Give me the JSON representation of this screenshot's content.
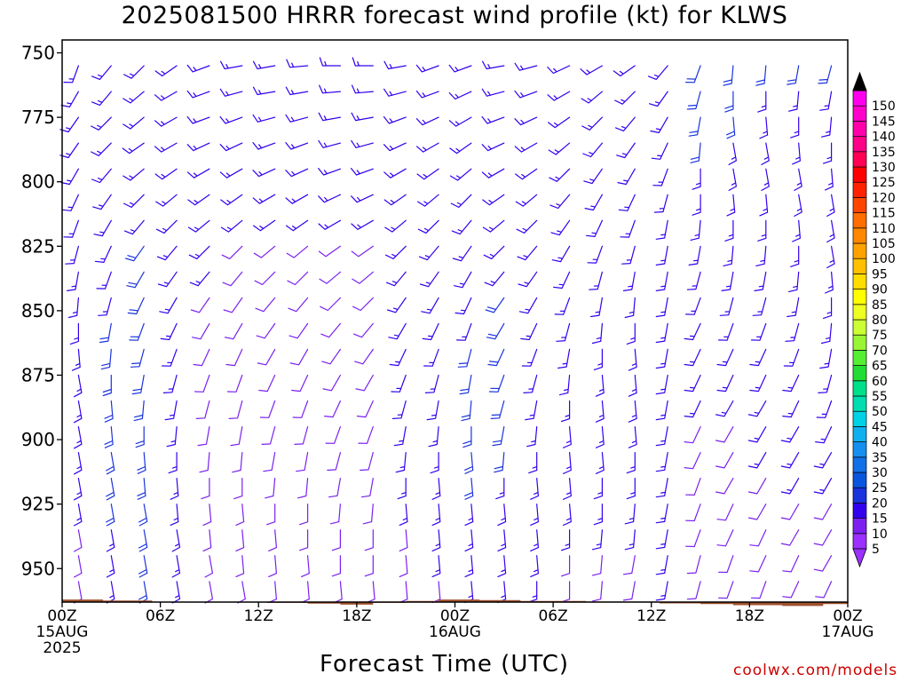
{
  "title": "2025081500 HRRR forecast wind profile (kt) for KLWS",
  "footer": "coolwx.com/models",
  "chart_data": {
    "type": "wind-barb-profile",
    "title": "2025081500 HRRR forecast wind profile (kt) for KLWS",
    "xlabel": "Forecast Time (UTC)",
    "ylabel": "",
    "x_ticks": [
      {
        "hour": 0,
        "lines": [
          "00Z",
          "15AUG",
          "2025"
        ]
      },
      {
        "hour": 6,
        "lines": [
          "06Z"
        ]
      },
      {
        "hour": 12,
        "lines": [
          "12Z"
        ]
      },
      {
        "hour": 18,
        "lines": [
          "18Z"
        ]
      },
      {
        "hour": 24,
        "lines": [
          "00Z",
          "16AUG"
        ]
      },
      {
        "hour": 30,
        "lines": [
          "06Z"
        ]
      },
      {
        "hour": 36,
        "lines": [
          "12Z"
        ]
      },
      {
        "hour": 42,
        "lines": [
          "18Z"
        ]
      },
      {
        "hour": 48,
        "lines": [
          "00Z",
          "17AUG"
        ]
      }
    ],
    "xlim": [
      0,
      48
    ],
    "y_ticks": [
      750,
      775,
      800,
      825,
      850,
      875,
      900,
      925,
      950
    ],
    "ylim_hpa": [
      745,
      963
    ],
    "forecast_hours": [
      1,
      3,
      5,
      7,
      9,
      11,
      13,
      15,
      17,
      19,
      21,
      23,
      25,
      27,
      29,
      31,
      33,
      35,
      37,
      39,
      41,
      43,
      45,
      47
    ],
    "pressure_levels": [
      755,
      765,
      775,
      785,
      795,
      805,
      815,
      825,
      835,
      845,
      855,
      865,
      875,
      885,
      895,
      905,
      915,
      925,
      935,
      945,
      955
    ],
    "surface_pressure": [
      {
        "hour": 0,
        "hpa": 962
      },
      {
        "hour": 2.5,
        "hpa": 962.4
      },
      {
        "hour": 5.5,
        "hpa": 963
      },
      {
        "hour": 10,
        "hpa": 963
      },
      {
        "hour": 12.5,
        "hpa": 963.3
      },
      {
        "hour": 15,
        "hpa": 963.6
      },
      {
        "hour": 17,
        "hpa": 964
      },
      {
        "hour": 19,
        "hpa": 963.3
      },
      {
        "hour": 21,
        "hpa": 962.6
      },
      {
        "hour": 23,
        "hpa": 962
      },
      {
        "hour": 25.5,
        "hpa": 962.2
      },
      {
        "hour": 28,
        "hpa": 962.6
      },
      {
        "hour": 32,
        "hpa": 962.8
      },
      {
        "hour": 36.5,
        "hpa": 963.5
      },
      {
        "hour": 39,
        "hpa": 963.8
      },
      {
        "hour": 41,
        "hpa": 964.2
      },
      {
        "hour": 44,
        "hpa": 964.5
      },
      {
        "hour": 46.5,
        "hpa": 963.8
      },
      {
        "hour": 48,
        "hpa": 963.8
      }
    ],
    "wind_rows": {
      "dir": [
        [
          200,
          220,
          225,
          235,
          250,
          260,
          260,
          265,
          270,
          270,
          260,
          250,
          250,
          260,
          255,
          245,
          240,
          235,
          220,
          200,
          185,
          185,
          190,
          195
        ],
        [
          210,
          220,
          230,
          240,
          250,
          255,
          260,
          260,
          265,
          265,
          255,
          250,
          245,
          255,
          250,
          240,
          230,
          225,
          215,
          195,
          180,
          180,
          185,
          190
        ],
        [
          215,
          225,
          230,
          240,
          250,
          250,
          255,
          255,
          260,
          260,
          250,
          245,
          240,
          250,
          245,
          235,
          225,
          220,
          210,
          190,
          175,
          175,
          180,
          185
        ],
        [
          215,
          225,
          235,
          240,
          245,
          245,
          250,
          250,
          255,
          255,
          245,
          240,
          235,
          245,
          240,
          230,
          220,
          215,
          205,
          185,
          170,
          170,
          175,
          180
        ],
        [
          210,
          220,
          230,
          235,
          240,
          240,
          245,
          245,
          250,
          250,
          240,
          235,
          230,
          240,
          235,
          225,
          215,
          210,
          200,
          180,
          170,
          170,
          170,
          175
        ],
        [
          205,
          215,
          225,
          230,
          235,
          235,
          240,
          240,
          245,
          245,
          235,
          230,
          225,
          235,
          230,
          220,
          210,
          205,
          195,
          180,
          175,
          175,
          170,
          170
        ],
        [
          200,
          210,
          220,
          225,
          230,
          230,
          235,
          235,
          240,
          240,
          230,
          225,
          220,
          230,
          225,
          215,
          205,
          200,
          190,
          185,
          180,
          180,
          175,
          170
        ],
        [
          195,
          205,
          215,
          220,
          225,
          225,
          230,
          230,
          235,
          235,
          225,
          220,
          215,
          225,
          220,
          210,
          200,
          195,
          190,
          190,
          185,
          185,
          180,
          170
        ],
        [
          190,
          200,
          210,
          215,
          220,
          220,
          225,
          225,
          230,
          230,
          220,
          215,
          210,
          220,
          215,
          205,
          195,
          190,
          190,
          195,
          190,
          190,
          185,
          175
        ],
        [
          185,
          195,
          205,
          210,
          215,
          215,
          220,
          220,
          225,
          225,
          215,
          210,
          205,
          215,
          210,
          200,
          190,
          185,
          190,
          200,
          195,
          195,
          190,
          180
        ],
        [
          180,
          190,
          200,
          205,
          210,
          210,
          215,
          215,
          220,
          220,
          210,
          205,
          200,
          210,
          205,
          195,
          185,
          180,
          190,
          205,
          200,
          200,
          195,
          185
        ],
        [
          175,
          185,
          195,
          200,
          205,
          205,
          210,
          210,
          215,
          215,
          205,
          200,
          195,
          205,
          200,
          190,
          180,
          175,
          190,
          205,
          205,
          205,
          200,
          190
        ],
        [
          170,
          180,
          190,
          195,
          200,
          200,
          205,
          205,
          210,
          210,
          200,
          195,
          190,
          200,
          195,
          185,
          175,
          175,
          190,
          205,
          205,
          205,
          205,
          195
        ],
        [
          170,
          175,
          185,
          190,
          195,
          195,
          200,
          200,
          205,
          205,
          195,
          190,
          185,
          195,
          190,
          180,
          175,
          175,
          190,
          205,
          210,
          210,
          205,
          200
        ],
        [
          170,
          175,
          180,
          185,
          190,
          190,
          195,
          195,
          200,
          200,
          190,
          185,
          180,
          190,
          185,
          175,
          175,
          175,
          190,
          205,
          210,
          210,
          210,
          205
        ],
        [
          170,
          170,
          175,
          180,
          185,
          185,
          190,
          190,
          195,
          195,
          185,
          180,
          175,
          185,
          180,
          175,
          175,
          180,
          190,
          205,
          210,
          210,
          210,
          210
        ],
        [
          170,
          170,
          175,
          175,
          180,
          180,
          185,
          185,
          190,
          190,
          180,
          175,
          175,
          180,
          175,
          175,
          180,
          180,
          190,
          200,
          210,
          210,
          210,
          210
        ],
        [
          170,
          170,
          170,
          175,
          175,
          175,
          180,
          180,
          185,
          185,
          175,
          175,
          175,
          175,
          175,
          175,
          180,
          185,
          190,
          200,
          205,
          210,
          210,
          210
        ],
        [
          170,
          170,
          170,
          170,
          175,
          175,
          175,
          180,
          180,
          180,
          175,
          175,
          175,
          175,
          175,
          180,
          185,
          185,
          190,
          200,
          205,
          205,
          210,
          210
        ],
        [
          170,
          170,
          170,
          170,
          170,
          175,
          175,
          175,
          180,
          180,
          175,
          175,
          175,
          175,
          175,
          180,
          185,
          190,
          190,
          195,
          200,
          205,
          205,
          210
        ],
        [
          170,
          170,
          170,
          170,
          170,
          170,
          175,
          175,
          175,
          175,
          175,
          175,
          175,
          175,
          180,
          180,
          185,
          190,
          190,
          195,
          200,
          200,
          205,
          205
        ]
      ],
      "speed": [
        [
          15,
          15,
          15,
          15,
          15,
          15,
          15,
          15,
          15,
          15,
          15,
          15,
          15,
          15,
          15,
          15,
          15,
          15,
          15,
          20,
          20,
          20,
          20,
          20
        ],
        [
          15,
          15,
          15,
          15,
          15,
          15,
          15,
          15,
          15,
          15,
          15,
          15,
          15,
          15,
          15,
          15,
          15,
          15,
          15,
          20,
          20,
          15,
          15,
          15
        ],
        [
          15,
          15,
          15,
          15,
          15,
          15,
          15,
          15,
          15,
          15,
          15,
          15,
          15,
          15,
          15,
          15,
          15,
          15,
          15,
          20,
          20,
          15,
          15,
          15
        ],
        [
          15,
          15,
          15,
          15,
          15,
          15,
          15,
          15,
          15,
          15,
          15,
          15,
          15,
          15,
          15,
          15,
          15,
          15,
          15,
          20,
          15,
          15,
          15,
          15
        ],
        [
          15,
          15,
          15,
          15,
          15,
          15,
          15,
          15,
          15,
          15,
          15,
          15,
          15,
          15,
          15,
          15,
          15,
          15,
          15,
          15,
          15,
          15,
          15,
          15
        ],
        [
          15,
          15,
          15,
          15,
          15,
          15,
          15,
          15,
          15,
          15,
          15,
          15,
          15,
          15,
          15,
          15,
          15,
          15,
          15,
          15,
          15,
          15,
          15,
          15
        ],
        [
          15,
          15,
          15,
          15,
          15,
          15,
          15,
          15,
          15,
          15,
          15,
          15,
          15,
          15,
          15,
          15,
          15,
          15,
          15,
          15,
          15,
          15,
          15,
          15
        ],
        [
          15,
          15,
          20,
          15,
          15,
          10,
          10,
          10,
          10,
          10,
          15,
          15,
          15,
          15,
          15,
          15,
          15,
          15,
          15,
          15,
          15,
          15,
          15,
          15
        ],
        [
          15,
          15,
          20,
          15,
          15,
          10,
          10,
          10,
          10,
          10,
          15,
          15,
          15,
          15,
          15,
          15,
          15,
          15,
          15,
          15,
          15,
          15,
          15,
          15
        ],
        [
          15,
          15,
          20,
          15,
          10,
          10,
          10,
          10,
          10,
          10,
          15,
          15,
          15,
          20,
          15,
          15,
          15,
          15,
          15,
          15,
          15,
          15,
          15,
          15
        ],
        [
          15,
          20,
          20,
          15,
          10,
          10,
          10,
          10,
          10,
          10,
          15,
          15,
          15,
          20,
          15,
          15,
          15,
          15,
          15,
          15,
          15,
          15,
          15,
          15
        ],
        [
          15,
          20,
          20,
          15,
          10,
          10,
          10,
          10,
          10,
          10,
          15,
          15,
          20,
          20,
          15,
          15,
          15,
          15,
          15,
          15,
          15,
          15,
          15,
          15
        ],
        [
          15,
          20,
          20,
          15,
          10,
          10,
          10,
          10,
          10,
          10,
          15,
          15,
          20,
          20,
          15,
          15,
          15,
          15,
          15,
          15,
          15,
          15,
          15,
          15
        ],
        [
          15,
          20,
          20,
          15,
          10,
          10,
          10,
          10,
          10,
          10,
          15,
          15,
          20,
          20,
          15,
          15,
          15,
          15,
          15,
          15,
          15,
          15,
          15,
          15
        ],
        [
          15,
          20,
          20,
          15,
          10,
          10,
          10,
          10,
          10,
          10,
          15,
          15,
          20,
          20,
          15,
          15,
          15,
          15,
          15,
          10,
          10,
          15,
          15,
          15
        ],
        [
          15,
          20,
          20,
          15,
          10,
          10,
          10,
          10,
          10,
          10,
          15,
          15,
          20,
          20,
          15,
          15,
          15,
          15,
          15,
          10,
          10,
          15,
          15,
          15
        ],
        [
          15,
          20,
          20,
          15,
          10,
          10,
          10,
          10,
          10,
          10,
          15,
          15,
          20,
          15,
          15,
          15,
          15,
          15,
          15,
          10,
          10,
          10,
          15,
          15
        ],
        [
          15,
          20,
          20,
          15,
          10,
          10,
          10,
          10,
          10,
          10,
          15,
          15,
          15,
          15,
          15,
          15,
          15,
          15,
          15,
          10,
          10,
          10,
          10,
          10
        ],
        [
          10,
          15,
          20,
          15,
          10,
          10,
          10,
          10,
          10,
          10,
          10,
          15,
          15,
          15,
          15,
          15,
          15,
          15,
          15,
          10,
          10,
          10,
          10,
          10
        ],
        [
          10,
          15,
          20,
          15,
          10,
          10,
          10,
          10,
          10,
          10,
          10,
          15,
          15,
          15,
          15,
          10,
          10,
          10,
          15,
          10,
          10,
          10,
          10,
          10
        ],
        [
          10,
          15,
          20,
          15,
          10,
          10,
          10,
          10,
          10,
          10,
          10,
          10,
          15,
          15,
          15,
          10,
          10,
          10,
          15,
          10,
          10,
          10,
          10,
          10
        ]
      ]
    },
    "colorbar": {
      "levels": [
        5,
        10,
        15,
        20,
        25,
        30,
        35,
        40,
        45,
        50,
        55,
        60,
        65,
        70,
        75,
        80,
        85,
        90,
        95,
        100,
        105,
        110,
        115,
        120,
        125,
        130,
        135,
        140,
        145,
        150
      ],
      "colors": [
        "#9b30ff",
        "#7b20f0",
        "#3300ee",
        "#1a33dd",
        "#0a55dd",
        "#1070e8",
        "#1590f0",
        "#10b0f0",
        "#00d2e6",
        "#00ddb0",
        "#00e08a",
        "#22dd33",
        "#55ee33",
        "#99f533",
        "#ccff33",
        "#eeff22",
        "#ffff00",
        "#ffdd00",
        "#ffc000",
        "#ffa200",
        "#ff8800",
        "#ff6e00",
        "#ff4400",
        "#ff2200",
        "#ff0000",
        "#ff0055",
        "#ff0088",
        "#ff00aa",
        "#ff00cc",
        "#ff00ee"
      ]
    },
    "surface_color": "#a0522d",
    "grid": false,
    "legend_placement": "right"
  }
}
